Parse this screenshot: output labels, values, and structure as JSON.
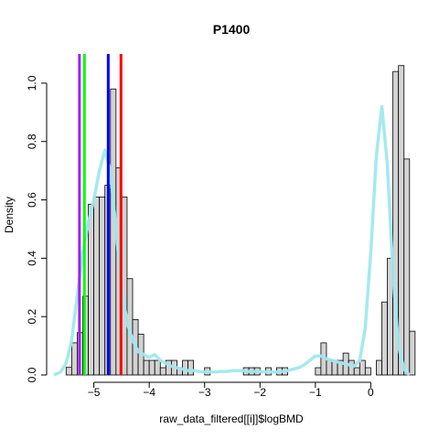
{
  "chart_data": {
    "type": "histogram",
    "title": "P1400",
    "xlabel": "raw_data_filtered[[i]]$logBMD",
    "ylabel": "Density",
    "xlim": [
      -5.72,
      0.72
    ],
    "ylim": [
      0,
      1.1
    ],
    "x_ticks": [
      -5,
      -4,
      -3,
      -2,
      -1,
      0
    ],
    "x_tick_labels": [
      "−5",
      "−4",
      "−3",
      "−2",
      "−1",
      "0"
    ],
    "y_ticks": [
      0,
      0.2,
      0.4,
      0.6,
      0.8,
      1.0
    ],
    "y_tick_labels": [
      "0.0",
      "0.2",
      "0.4",
      "0.6",
      "0.8",
      "1.0"
    ],
    "grid": false,
    "bin_width": 0.1,
    "bins_start": -5.5,
    "bin_values": [
      0.026,
      0.11,
      0.145,
      0.27,
      0.585,
      0.61,
      0.61,
      0.65,
      0.98,
      0.71,
      0.61,
      0.33,
      0.19,
      0.14,
      0.05,
      0.05,
      0.05,
      0.025,
      0.05,
      0.05,
      0.025,
      0.05,
      0.05,
      0.0,
      0.0,
      0.025,
      0.0,
      0.0,
      0.0,
      0.0,
      0.0,
      0.0,
      0.025,
      0.025,
      0.025,
      0.0,
      0.025,
      0.0,
      0.025,
      0.025,
      0.0,
      0.0,
      0.0,
      0.0,
      0.0,
      0.025,
      0.11,
      0.05,
      0.05,
      0.05,
      0.075,
      0.05,
      0.025,
      0.05,
      0.025,
      0.0,
      0.05,
      0.25,
      0.4,
      1.04,
      1.06,
      0.74,
      0.15
    ],
    "bar_fill": "#d3d3d3",
    "bar_stroke": "#000000",
    "density_color": "#a0e8ee",
    "density": {
      "x": [
        -5.72,
        -5.6,
        -5.5,
        -5.4,
        -5.3,
        -5.2,
        -5.1,
        -5.0,
        -4.9,
        -4.8,
        -4.7,
        -4.6,
        -4.5,
        -4.4,
        -4.3,
        -4.2,
        -4.1,
        -4.0,
        -3.9,
        -3.8,
        -3.7,
        -3.6,
        -3.5,
        -3.4,
        -3.3,
        -3.2,
        -3.1,
        -3.0,
        -2.9,
        -2.8,
        -2.7,
        -2.6,
        -2.5,
        -2.4,
        -2.3,
        -2.2,
        -2.1,
        -2.0,
        -1.9,
        -1.8,
        -1.7,
        -1.6,
        -1.5,
        -1.4,
        -1.3,
        -1.2,
        -1.1,
        -1.0,
        -0.9,
        -0.8,
        -0.7,
        -0.6,
        -0.5,
        -0.4,
        -0.3,
        -0.2,
        -0.1,
        0.0,
        0.1,
        0.2,
        0.3,
        0.4,
        0.5,
        0.6,
        0.7
      ],
      "y": [
        0.0,
        0.01,
        0.04,
        0.12,
        0.27,
        0.42,
        0.52,
        0.6,
        0.7,
        0.77,
        0.7,
        0.5,
        0.3,
        0.18,
        0.12,
        0.08,
        0.07,
        0.06,
        0.07,
        0.05,
        0.04,
        0.03,
        0.025,
        0.02,
        0.015,
        0.015,
        0.012,
        0.01,
        0.01,
        0.01,
        0.012,
        0.012,
        0.015,
        0.015,
        0.015,
        0.012,
        0.012,
        0.012,
        0.01,
        0.01,
        0.01,
        0.012,
        0.015,
        0.02,
        0.025,
        0.035,
        0.05,
        0.065,
        0.065,
        0.055,
        0.05,
        0.045,
        0.04,
        0.035,
        0.03,
        0.05,
        0.16,
        0.42,
        0.75,
        0.92,
        0.72,
        0.35,
        0.1,
        0.02,
        0.0
      ]
    },
    "vlines": [
      {
        "x": -5.26,
        "color": "#a020f0"
      },
      {
        "x": -5.17,
        "color": "#00ff00"
      },
      {
        "x": -4.74,
        "color": "#0000ff"
      },
      {
        "x": -4.51,
        "color": "#ff0000"
      }
    ]
  }
}
